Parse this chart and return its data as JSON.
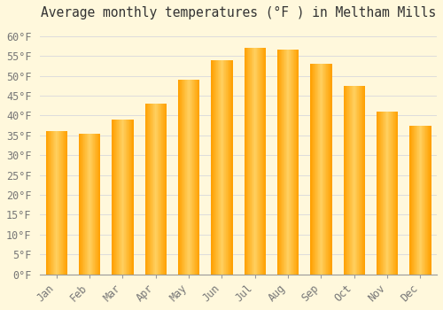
{
  "title": "Average monthly temperatures (°F ) in Meltham Mills",
  "months": [
    "Jan",
    "Feb",
    "Mar",
    "Apr",
    "May",
    "Jun",
    "Jul",
    "Aug",
    "Sep",
    "Oct",
    "Nov",
    "Dec"
  ],
  "values": [
    36,
    35.5,
    39,
    43,
    49,
    54,
    57,
    56.5,
    53,
    47.5,
    41,
    37.5
  ],
  "bar_color": "#FFA500",
  "bar_color_light": "#FFD580",
  "ylim": [
    0,
    63
  ],
  "yticks": [
    0,
    5,
    10,
    15,
    20,
    25,
    30,
    35,
    40,
    45,
    50,
    55,
    60
  ],
  "background_color": "#FFF8DC",
  "grid_color": "#DDDDDD",
  "title_fontsize": 10.5,
  "tick_fontsize": 8.5
}
